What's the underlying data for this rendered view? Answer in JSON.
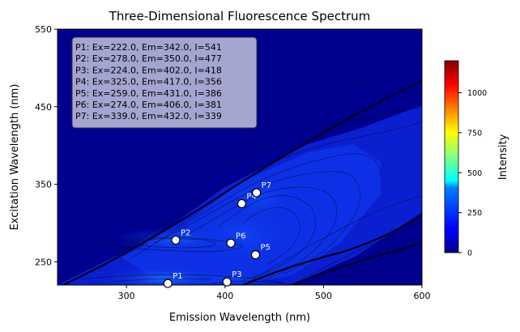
{
  "chart_data": {
    "type": "heatmap",
    "subtype": "filled-contour",
    "title": "Three-Dimensional Fluorescence Spectrum",
    "xlabel": "Emission Wavelength (nm)",
    "ylabel": "Excitation Wavelength (nm)",
    "xlim": [
      230,
      600
    ],
    "ylim": [
      220,
      550
    ],
    "xticks": [
      300,
      400,
      500,
      600
    ],
    "yticks": [
      250,
      350,
      450,
      550
    ],
    "colormap": "jet",
    "colorbar": {
      "label": "Intensity",
      "vmin": 0,
      "vmax": 1200,
      "ticks": [
        0,
        250,
        500,
        750,
        1000
      ]
    },
    "peaks": [
      {
        "name": "P1",
        "ex": 222.0,
        "em": 342.0,
        "intensity": 541
      },
      {
        "name": "P2",
        "ex": 278.0,
        "em": 350.0,
        "intensity": 477
      },
      {
        "name": "P3",
        "ex": 224.0,
        "em": 402.0,
        "intensity": 418
      },
      {
        "name": "P4",
        "ex": 325.0,
        "em": 417.0,
        "intensity": 356
      },
      {
        "name": "P5",
        "ex": 259.0,
        "em": 431.0,
        "intensity": 386
      },
      {
        "name": "P6",
        "ex": 274.0,
        "em": 406.0,
        "intensity": 381
      },
      {
        "name": "P7",
        "ex": 339.0,
        "em": 432.0,
        "intensity": 339
      }
    ],
    "annotation_lines": [
      "P1: Ex=222.0, Em=342.0, I=541",
      "P2: Ex=278.0, Em=350.0, I=477",
      "P3: Ex=224.0, Em=402.0, I=418",
      "P4: Ex=325.0, Em=417.0, I=356",
      "P5: Ex=259.0, Em=431.0, I=386",
      "P6: Ex=274.0, Em=406.0, I=381",
      "P7: Ex=339.0, Em=432.0, I=339"
    ],
    "grid": false
  }
}
